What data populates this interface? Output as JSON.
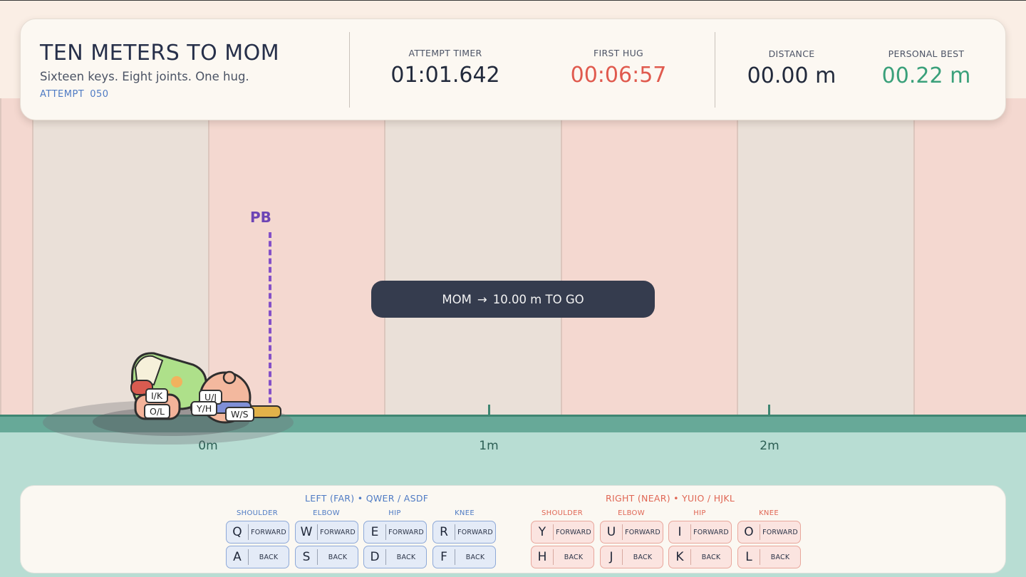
{
  "hud": {
    "title": "TEN METERS TO MOM",
    "subtitle": "Sixteen keys. Eight joints. One hug.",
    "attempt_label": "ATTEMPT",
    "attempt_number": "050",
    "stats": {
      "attempt_timer": {
        "label": "ATTEMPT TIMER",
        "value": "01:01.642"
      },
      "first_hug": {
        "label": "FIRST HUG",
        "value": "00:06:57"
      },
      "distance": {
        "label": "DISTANCE",
        "value": "00.00 m"
      },
      "personal_best": {
        "label": "PERSONAL BEST",
        "value": "00.22 m"
      }
    }
  },
  "track": {
    "pb_label": "PB",
    "goal": {
      "text": "MOM",
      "arrow": "→",
      "remaining": "10.00 m TO GO"
    },
    "markers": [
      "0m",
      "1m",
      "2m"
    ]
  },
  "character": {
    "joint_tags": [
      "I/K",
      "O/L",
      "U/J",
      "Y/H",
      "W/S"
    ]
  },
  "controls": {
    "left": {
      "title": "LEFT (FAR)  •  QWER / ASDF",
      "joints": [
        {
          "name": "SHOULDER",
          "forward_key": "Q",
          "back_key": "A"
        },
        {
          "name": "ELBOW",
          "forward_key": "W",
          "back_key": "S"
        },
        {
          "name": "HIP",
          "forward_key": "E",
          "back_key": "D"
        },
        {
          "name": "KNEE",
          "forward_key": "R",
          "back_key": "F"
        }
      ]
    },
    "right": {
      "title": "RIGHT (NEAR)  •  YUIO / HJKL",
      "joints": [
        {
          "name": "SHOULDER",
          "forward_key": "Y",
          "back_key": "H"
        },
        {
          "name": "ELBOW",
          "forward_key": "U",
          "back_key": "J"
        },
        {
          "name": "HIP",
          "forward_key": "I",
          "back_key": "K"
        },
        {
          "name": "KNEE",
          "forward_key": "O",
          "back_key": "L"
        }
      ]
    },
    "forward_label": "FORWARD",
    "back_label": "BACK"
  },
  "colors": {
    "accent_blue": "#4f7bc4",
    "accent_red": "#e05a4e",
    "accent_green": "#3aa07a",
    "pb_purple": "#8450c7",
    "ground_green": "#67a998"
  }
}
